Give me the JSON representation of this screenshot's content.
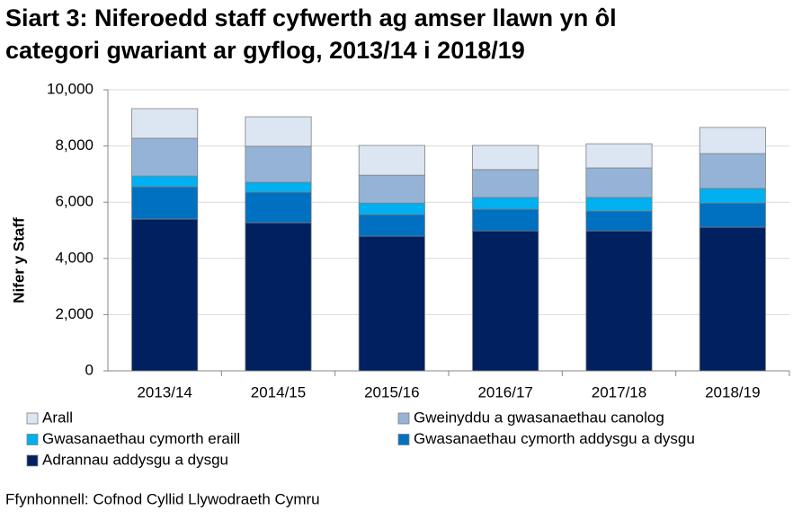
{
  "chart_data": {
    "type": "stacked-bar",
    "title": "Siart 3: Niferoedd staff cyfwerth ag amser llawn yn ôl categori gwariant ar gyflog, 2013/14 i 2018/19",
    "ylabel": "Nifer y Staff",
    "source": "Ffynhonnell: Cofnod Cyllid Llywodraeth Cymru",
    "categories": [
      "2013/14",
      "2014/15",
      "2015/16",
      "2016/17",
      "2017/18",
      "2018/19"
    ],
    "series": [
      {
        "name": "Arall",
        "color": "#dce6f2",
        "values": [
          1055,
          1050,
          1060,
          860,
          860,
          930
        ]
      },
      {
        "name": "Gweinyddu a gwasanaethau canolog",
        "color": "#95b3d7",
        "values": [
          1345,
          1280,
          990,
          990,
          1050,
          1240
        ]
      },
      {
        "name": "Gwasanaethau cymorth eraill",
        "color": "#00b0f0",
        "values": [
          380,
          350,
          410,
          420,
          480,
          520
        ]
      },
      {
        "name": "Gwasanaethau cymorth addysgu a dysgu",
        "color": "#0070c0",
        "values": [
          1150,
          1090,
          770,
          770,
          710,
          860
        ]
      },
      {
        "name": "Adrannau addysgu a dysgu",
        "color": "#002060",
        "values": [
          5400,
          5270,
          4790,
          4980,
          4980,
          5110
        ]
      }
    ],
    "ylim": [
      0,
      10000
    ],
    "yticks": [
      0,
      {
        "value": 2000,
        "label": "2,000"
      },
      {
        "value": 4000,
        "label": "4,000"
      },
      {
        "value": 6000,
        "label": "6,000"
      },
      {
        "value": 8000,
        "label": "8,000"
      },
      {
        "value": 10000,
        "label": "10,000"
      }
    ],
    "grid": true
  }
}
